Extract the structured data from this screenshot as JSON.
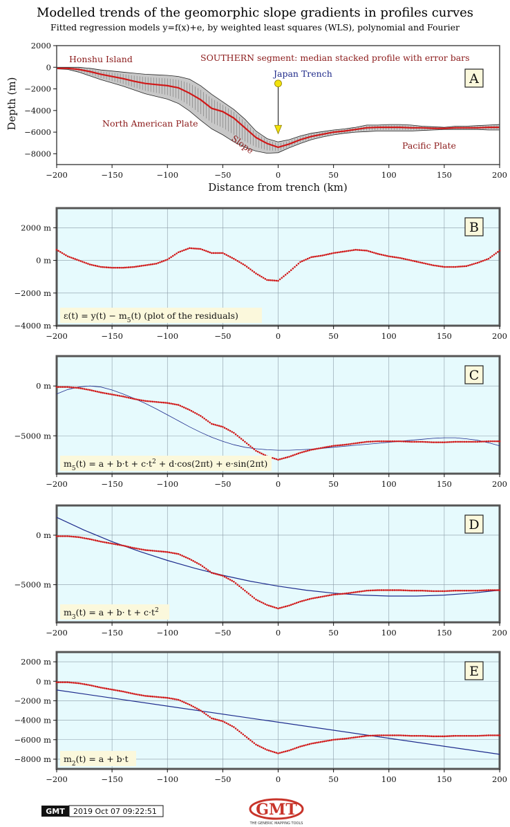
{
  "header": {
    "title": "Modelled trends of the geomorphic slope gradients in profiles curves",
    "subtitle": "Fitted regression models y=f(x)+e, by weighted least squares (WLS), polynomial and Fourier"
  },
  "footer": {
    "logo_text": "GMT",
    "timestamp": "2019 Oct 07 09:22:51",
    "gmt_logo_caption": "THE GENERIC MAPPING TOOLS"
  },
  "colors": {
    "data_red": "#d01818",
    "fit_blue": "#1c2a8c",
    "panel_bg": "#e6fafd",
    "grid": "#8a9aa6",
    "band_fill": "#c8c8c8",
    "label_box": "#fbf8dc"
  },
  "chart_data": [
    {
      "id": "A",
      "type": "area",
      "letter": "A",
      "xlabel": "Distance from trench (km)",
      "ylabel": "Depth (m)",
      "xlim": [
        -200,
        200
      ],
      "ylim": [
        -9000,
        2000
      ],
      "x_ticks": [
        -200,
        -150,
        -100,
        -50,
        0,
        50,
        100,
        150,
        200
      ],
      "x_tick_labels": [
        "−200",
        "−150",
        "−100",
        "−50",
        "0",
        "50",
        "100",
        "150",
        "200"
      ],
      "y_ticks": [
        2000,
        0,
        -2000,
        -4000,
        -6000,
        -8000
      ],
      "y_tick_labels": [
        "2000",
        "0",
        "−2000",
        "−4000",
        "−6000",
        "−8000"
      ],
      "grid": false,
      "annotations": {
        "segment_note": "SOUTHERN segment: median stacked profile with error bars",
        "honshu": "Honshu Island",
        "trench": "Japan Trench",
        "north_american": "North American Plate",
        "slope": "Slope",
        "pacific": "Pacific Plate"
      },
      "trench_marker": {
        "x": 0,
        "top_y": -1500,
        "bottom_y": -5500
      },
      "series": [
        {
          "x": [
            -200,
            -190,
            -180,
            -170,
            -160,
            -150,
            -140,
            -130,
            -120,
            -110,
            -100,
            -90,
            -80,
            -70,
            -60,
            -50,
            -40,
            -30,
            -20,
            -10,
            0,
            10,
            20,
            30,
            40,
            50,
            60,
            70,
            80,
            90,
            100,
            110,
            120,
            130,
            140,
            150,
            160,
            170,
            180,
            190,
            200
          ],
          "median": [
            -100,
            -100,
            -200,
            -400,
            -650,
            -850,
            -1050,
            -1300,
            -1500,
            -1600,
            -1700,
            -1900,
            -2400,
            -3000,
            -3800,
            -4100,
            -4700,
            -5600,
            -6500,
            -7050,
            -7400,
            -7100,
            -6700,
            -6400,
            -6200,
            -6000,
            -5900,
            -5750,
            -5600,
            -5550,
            -5550,
            -5550,
            -5600,
            -5600,
            -5650,
            -5650,
            -5600,
            -5600,
            -5600,
            -5550,
            -5550
          ],
          "upper": [
            0,
            0,
            0,
            -100,
            -250,
            -350,
            -450,
            -550,
            -650,
            -700,
            -750,
            -850,
            -1100,
            -1700,
            -2500,
            -3200,
            -3900,
            -4800,
            -5900,
            -6600,
            -6900,
            -6700,
            -6350,
            -6100,
            -5950,
            -5800,
            -5700,
            -5550,
            -5350,
            -5350,
            -5300,
            -5300,
            -5350,
            -5450,
            -5500,
            -5550,
            -5450,
            -5450,
            -5400,
            -5350,
            -5300
          ],
          "lower": [
            -150,
            -200,
            -450,
            -800,
            -1150,
            -1450,
            -1750,
            -2100,
            -2450,
            -2700,
            -2950,
            -3350,
            -4050,
            -4900,
            -5700,
            -6250,
            -6900,
            -7400,
            -7750,
            -7950,
            -7900,
            -7450,
            -7050,
            -6700,
            -6450,
            -6250,
            -6100,
            -6000,
            -5950,
            -5900,
            -5900,
            -5900,
            -5900,
            -5850,
            -5800,
            -5750,
            -5750,
            -5750,
            -5750,
            -5800,
            -5800
          ]
        }
      ]
    },
    {
      "id": "B",
      "type": "scatter",
      "letter": "B",
      "xlim": [
        -200,
        200
      ],
      "ylim": [
        -4000,
        3200
      ],
      "x_ticks": [
        -200,
        -150,
        -100,
        -50,
        0,
        50,
        100,
        150,
        200
      ],
      "x_tick_labels": [
        "−200",
        "−150",
        "−100",
        "−50",
        "0",
        "50",
        "100",
        "150",
        "200"
      ],
      "y_ticks": [
        2000,
        0,
        -2000,
        -4000
      ],
      "y_tick_labels": [
        "2000 m",
        "0 m",
        "−2000 m",
        "−4000 m"
      ],
      "grid": true,
      "formula_html": "ε(t) = y(t) − m<tspan baseline-shift='sub' font-size='9'>5</tspan>(t) (plot of the residuals)",
      "series": [
        {
          "x": [
            -200,
            -190,
            -180,
            -170,
            -160,
            -150,
            -140,
            -130,
            -120,
            -110,
            -100,
            -90,
            -80,
            -70,
            -60,
            -50,
            -40,
            -30,
            -20,
            -10,
            0,
            10,
            20,
            30,
            40,
            50,
            60,
            70,
            80,
            90,
            100,
            110,
            120,
            130,
            140,
            150,
            160,
            170,
            180,
            190,
            200
          ],
          "values": [
            650,
            250,
            0,
            -250,
            -400,
            -450,
            -450,
            -400,
            -300,
            -200,
            50,
            500,
            750,
            700,
            450,
            450,
            100,
            -300,
            -800,
            -1200,
            -1250,
            -700,
            -100,
            200,
            300,
            450,
            550,
            650,
            600,
            400,
            250,
            150,
            0,
            -150,
            -300,
            -400,
            -400,
            -350,
            -150,
            100,
            600
          ]
        }
      ]
    },
    {
      "id": "C",
      "type": "line",
      "letter": "C",
      "xlim": [
        -200,
        200
      ],
      "ylim": [
        -8800,
        3000
      ],
      "x_ticks": [
        -200,
        -150,
        -100,
        -50,
        0,
        50,
        100,
        150,
        200
      ],
      "x_tick_labels": [
        "−200",
        "−150",
        "−100",
        "−50",
        "0",
        "50",
        "100",
        "150",
        "200"
      ],
      "y_ticks": [
        0,
        -5000
      ],
      "y_tick_labels": [
        "0 m",
        "−5000 m"
      ],
      "grid": true,
      "formula_html": "m<tspan baseline-shift='sub' font-size='9'>5</tspan>(t) = a + b·t + c·t<tspan baseline-shift='super' font-size='9'>2</tspan> + d·cos(2πt) + e·sin(2πt)",
      "series": [
        {
          "kind": "data",
          "x": [
            -200,
            -190,
            -180,
            -170,
            -160,
            -150,
            -140,
            -130,
            -120,
            -110,
            -100,
            -90,
            -80,
            -70,
            -60,
            -50,
            -40,
            -30,
            -20,
            -10,
            0,
            10,
            20,
            30,
            40,
            50,
            60,
            70,
            80,
            90,
            100,
            110,
            120,
            130,
            140,
            150,
            160,
            170,
            180,
            190,
            200
          ],
          "values": [
            -100,
            -100,
            -200,
            -400,
            -650,
            -850,
            -1050,
            -1300,
            -1500,
            -1600,
            -1700,
            -1900,
            -2400,
            -3000,
            -3800,
            -4100,
            -4700,
            -5600,
            -6500,
            -7050,
            -7400,
            -7100,
            -6700,
            -6400,
            -6200,
            -6000,
            -5900,
            -5750,
            -5600,
            -5550,
            -5550,
            -5550,
            -5600,
            -5600,
            -5650,
            -5650,
            -5600,
            -5600,
            -5600,
            -5550,
            -5550
          ]
        },
        {
          "kind": "fit",
          "x": [
            -200,
            -190,
            -180,
            -170,
            -160,
            -150,
            -140,
            -130,
            -120,
            -110,
            -100,
            -90,
            -80,
            -70,
            -60,
            -50,
            -40,
            -30,
            -20,
            -10,
            0,
            10,
            20,
            30,
            40,
            50,
            60,
            70,
            80,
            90,
            100,
            110,
            120,
            130,
            140,
            150,
            160,
            170,
            180,
            190,
            200
          ],
          "values": [
            -800,
            -350,
            -100,
            0,
            -100,
            -400,
            -800,
            -1250,
            -1750,
            -2300,
            -2900,
            -3500,
            -4100,
            -4650,
            -5150,
            -5550,
            -5900,
            -6150,
            -6300,
            -6400,
            -6450,
            -6450,
            -6400,
            -6350,
            -6250,
            -6150,
            -6050,
            -5950,
            -5850,
            -5750,
            -5650,
            -5550,
            -5450,
            -5350,
            -5250,
            -5200,
            -5200,
            -5300,
            -5450,
            -5700,
            -6000
          ]
        }
      ]
    },
    {
      "id": "D",
      "type": "line",
      "letter": "D",
      "xlim": [
        -200,
        200
      ],
      "ylim": [
        -8800,
        3000
      ],
      "x_ticks": [
        -200,
        -150,
        -100,
        -50,
        0,
        50,
        100,
        150,
        200
      ],
      "x_tick_labels": [
        "−200",
        "−150",
        "−100",
        "−50",
        "0",
        "50",
        "100",
        "150",
        "200"
      ],
      "y_ticks": [
        0,
        -5000
      ],
      "y_tick_labels": [
        "0 m",
        "−5000 m"
      ],
      "grid": true,
      "formula_html": "m<tspan baseline-shift='sub' font-size='9'>3</tspan>(t) = a + b· t + c·t<tspan baseline-shift='super' font-size='9'>2</tspan>",
      "series": [
        {
          "kind": "data",
          "x": [
            -200,
            -190,
            -180,
            -170,
            -160,
            -150,
            -140,
            -130,
            -120,
            -110,
            -100,
            -90,
            -80,
            -70,
            -60,
            -50,
            -40,
            -30,
            -20,
            -10,
            0,
            10,
            20,
            30,
            40,
            50,
            60,
            70,
            80,
            90,
            100,
            110,
            120,
            130,
            140,
            150,
            160,
            170,
            180,
            190,
            200
          ],
          "values": [
            -100,
            -100,
            -200,
            -400,
            -650,
            -850,
            -1050,
            -1300,
            -1500,
            -1600,
            -1700,
            -1900,
            -2400,
            -3000,
            -3800,
            -4100,
            -4700,
            -5600,
            -6500,
            -7050,
            -7400,
            -7100,
            -6700,
            -6400,
            -6200,
            -6000,
            -5900,
            -5750,
            -5600,
            -5550,
            -5550,
            -5550,
            -5600,
            -5600,
            -5650,
            -5650,
            -5600,
            -5600,
            -5600,
            -5550,
            -5550
          ]
        },
        {
          "kind": "fit",
          "x": [
            -200,
            -175,
            -150,
            -125,
            -100,
            -75,
            -50,
            -25,
            0,
            25,
            50,
            75,
            100,
            125,
            150,
            175,
            200
          ],
          "values": [
            1800,
            500,
            -650,
            -1650,
            -2550,
            -3350,
            -4050,
            -4650,
            -5150,
            -5550,
            -5850,
            -6050,
            -6150,
            -6150,
            -6050,
            -5850,
            -5550
          ]
        }
      ]
    },
    {
      "id": "E",
      "type": "line",
      "letter": "E",
      "xlim": [
        -200,
        200
      ],
      "ylim": [
        -9000,
        3000
      ],
      "x_ticks": [
        -200,
        -150,
        -100,
        -50,
        0,
        50,
        100,
        150,
        200
      ],
      "x_tick_labels": [
        "−200",
        "−150",
        "−100",
        "−50",
        "0",
        "50",
        "100",
        "150",
        "200"
      ],
      "y_ticks": [
        2000,
        0,
        -2000,
        -4000,
        -6000,
        -8000
      ],
      "y_tick_labels": [
        "2000 m",
        "0 m",
        "−2000 m",
        "−4000 m",
        "−6000 m",
        "−8000 m"
      ],
      "grid": true,
      "formula_html": "m<tspan baseline-shift='sub' font-size='9'>2</tspan>(t) = a + b·t",
      "series": [
        {
          "kind": "data",
          "x": [
            -200,
            -190,
            -180,
            -170,
            -160,
            -150,
            -140,
            -130,
            -120,
            -110,
            -100,
            -90,
            -80,
            -70,
            -60,
            -50,
            -40,
            -30,
            -20,
            -10,
            0,
            10,
            20,
            30,
            40,
            50,
            60,
            70,
            80,
            90,
            100,
            110,
            120,
            130,
            140,
            150,
            160,
            170,
            180,
            190,
            200
          ],
          "values": [
            -100,
            -100,
            -200,
            -400,
            -650,
            -850,
            -1050,
            -1300,
            -1500,
            -1600,
            -1700,
            -1900,
            -2400,
            -3000,
            -3800,
            -4100,
            -4700,
            -5600,
            -6500,
            -7050,
            -7400,
            -7100,
            -6700,
            -6400,
            -6200,
            -6000,
            -5900,
            -5750,
            -5600,
            -5550,
            -5550,
            -5550,
            -5600,
            -5600,
            -5650,
            -5650,
            -5600,
            -5600,
            -5600,
            -5550,
            -5550
          ]
        },
        {
          "kind": "fit",
          "x": [
            -200,
            200
          ],
          "values": [
            -900,
            -7500
          ]
        }
      ]
    }
  ]
}
